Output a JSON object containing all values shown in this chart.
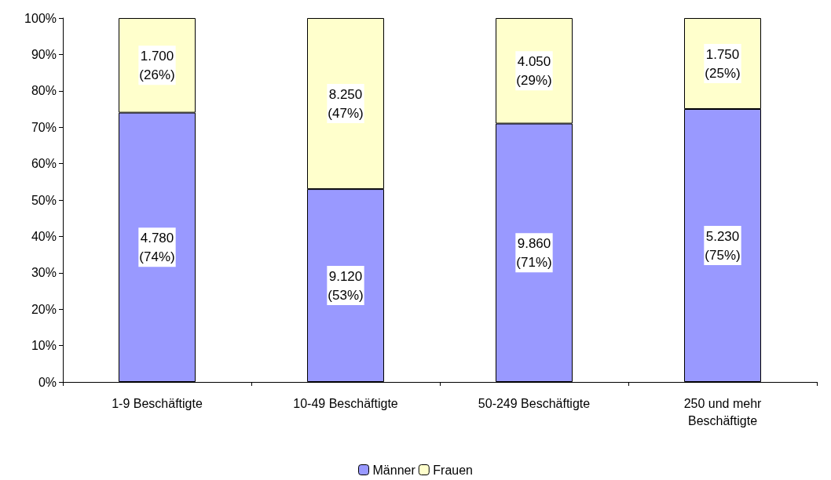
{
  "chart_data": {
    "type": "bar",
    "stacked": true,
    "categories": [
      "1-9 Beschäftigte",
      "10-49 Beschäftigte",
      "50-249 Beschäftigte",
      "250 und mehr\nBeschäftigte"
    ],
    "series": [
      {
        "name": "Männer",
        "color": "#9999ff",
        "values": [
          74,
          53,
          71,
          75
        ],
        "value_labels": [
          "4.780\n(74%)",
          "9.120\n(53%)",
          "9.860\n(71%)",
          "5.230\n(75%)"
        ]
      },
      {
        "name": "Frauen",
        "color": "#ffffcc",
        "values": [
          26,
          47,
          29,
          25
        ],
        "value_labels": [
          "1.700\n(26%)",
          "8.250\n(47%)",
          "4.050\n(29%)",
          "1.750\n(25%)"
        ]
      }
    ],
    "ylim": [
      0,
      100
    ],
    "yticks": [
      {
        "value": 0,
        "label": "0%"
      },
      {
        "value": 10,
        "label": "10%"
      },
      {
        "value": 20,
        "label": "20%"
      },
      {
        "value": 30,
        "label": "30%"
      },
      {
        "value": 40,
        "label": "40%"
      },
      {
        "value": 50,
        "label": "50%"
      },
      {
        "value": 60,
        "label": "60%"
      },
      {
        "value": 70,
        "label": "70%"
      },
      {
        "value": 80,
        "label": "80%"
      },
      {
        "value": 90,
        "label": "90%"
      },
      {
        "value": 100,
        "label": "100%"
      }
    ],
    "grid": false,
    "legend": "bottom"
  }
}
